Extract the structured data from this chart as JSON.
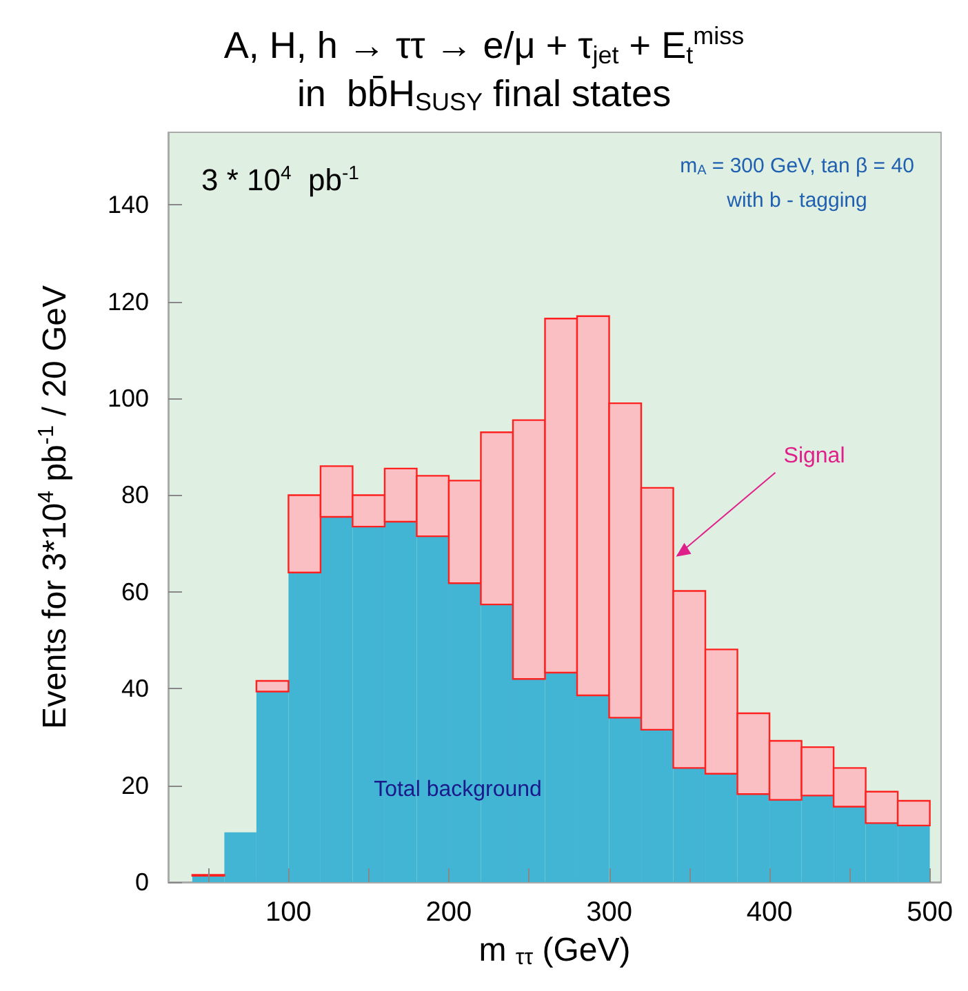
{
  "chart_data": {
    "type": "bar",
    "title": "A, H, h → ττ → e/μ + τ$_{jet}$ + E$_{t}$$^{miss}$",
    "subtitle": "in  bb̄H$_{SUSY}$ final states",
    "xlabel": "m $_{ττ}$ (GeV)",
    "ylabel": "Events for 3*10$^{4}$ pb$^{-1}$ / 20 GeV",
    "x": [
      50,
      70,
      90,
      110,
      130,
      150,
      170,
      190,
      210,
      230,
      250,
      270,
      290,
      310,
      330,
      350,
      370,
      390,
      410,
      430,
      450,
      470,
      490
    ],
    "stacked": true,
    "series": [
      {
        "color": "#42b5d4",
        "values": [
          1.3,
          10.3,
          39.4,
          64,
          75.5,
          73.5,
          74.5,
          71.5,
          61.8,
          57.4,
          42,
          43.3,
          38.6,
          34,
          31.5,
          23.6,
          22.4,
          18.2,
          17,
          17.9,
          15.6,
          12.2,
          11.7
        ]
      },
      {
        "color": "#f9bfc2",
        "values": [
          0.2,
          0,
          2.2,
          16,
          10.5,
          6.5,
          11,
          12.5,
          21.2,
          35.6,
          53.5,
          73.2,
          78.4,
          65,
          50,
          36.6,
          25.7,
          16.7,
          12.2,
          10,
          8,
          6.5,
          5.1
        ]
      }
    ],
    "xlim": [
      25,
      507
    ],
    "xticks": [
      {
        "value": 50,
        "label": null
      },
      100,
      {
        "value": 150,
        "label": null
      },
      200,
      {
        "value": 250,
        "label": null
      },
      300,
      {
        "value": 350,
        "label": null
      },
      400,
      {
        "value": 450,
        "label": null
      },
      500
    ],
    "ylim": [
      0,
      155
    ],
    "yticks": [
      0,
      20,
      40,
      60,
      80,
      100,
      120,
      140
    ],
    "grid": false,
    "annotations": [
      "3 * 10$^{4}$  pb$^{-1}$",
      "m$_{A}$ = 300 GeV, tan β = 40",
      "with b - tagging",
      "Total background",
      {
        "text": "Signal",
        "x": 340,
        "y": 67
      }
    ]
  }
}
